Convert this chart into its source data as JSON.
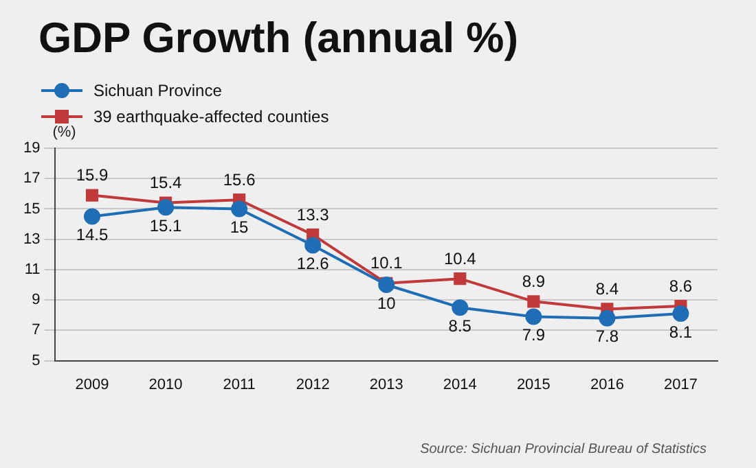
{
  "chart_data": {
    "type": "line",
    "title": "GDP Growth (annual %)",
    "ylabel": "(%)",
    "categories": [
      "2009",
      "2010",
      "2011",
      "2012",
      "2013",
      "2014",
      "2015",
      "2016",
      "2017"
    ],
    "series": [
      {
        "name": "Sichuan Province",
        "color": "#1f6db5",
        "marker": "circle",
        "values": [
          14.5,
          15.1,
          15,
          12.6,
          10,
          8.5,
          7.9,
          7.8,
          8.1
        ]
      },
      {
        "name": "39 earthquake-affected counties",
        "color": "#c0393b",
        "marker": "square",
        "values": [
          15.9,
          15.4,
          15.6,
          13.3,
          10.1,
          10.4,
          8.9,
          8.4,
          8.6
        ]
      }
    ],
    "ylim": [
      5,
      19
    ],
    "yticks": [
      5,
      7,
      9,
      11,
      13,
      15,
      17,
      19
    ],
    "grid": "y",
    "legend": "top left",
    "data_labels": true,
    "annotations": [
      "Source: Sichuan Provincial Bureau of Statistics"
    ]
  }
}
